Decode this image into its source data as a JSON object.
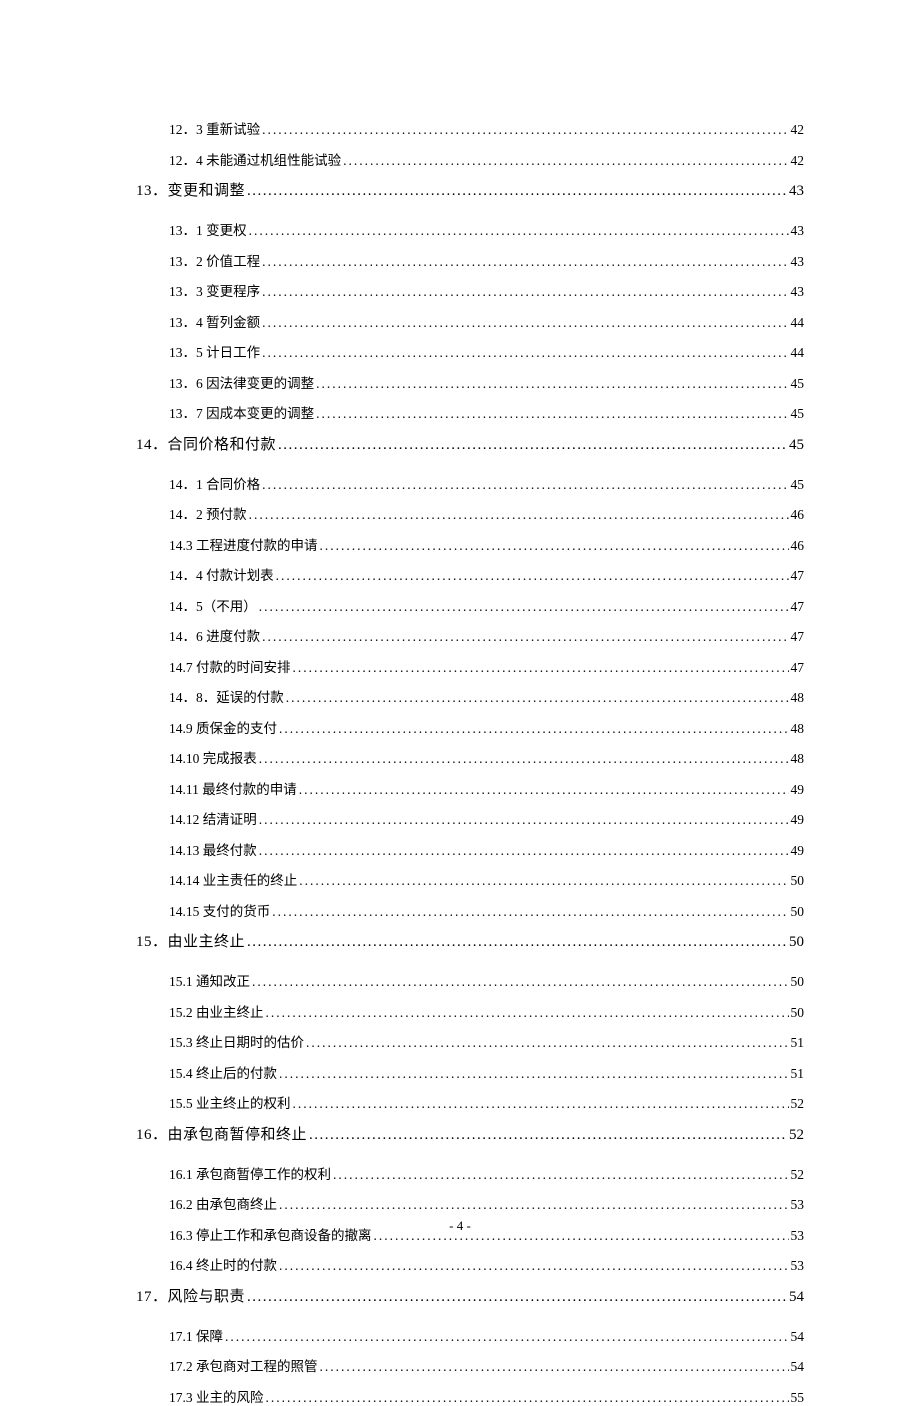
{
  "colors": {
    "background": "#ffffff",
    "text": "#000000"
  },
  "typography": {
    "sub_fontsize": 13.5,
    "main_fontsize": 15,
    "font_family": "SimSun"
  },
  "entries": [
    {
      "level": "sub",
      "label": "12．3 重新试验",
      "page": "42"
    },
    {
      "level": "sub",
      "label": "12．4 未能通过机组性能试验",
      "page": "42"
    },
    {
      "level": "main",
      "label": "13．变更和调整 ",
      "page": "43"
    },
    {
      "level": "sub",
      "label": "13．1 变更权",
      "page": "43"
    },
    {
      "level": "sub",
      "label": "13．2 价值工程",
      "page": "43"
    },
    {
      "level": "sub",
      "label": "13．3 变更程序",
      "page": "43"
    },
    {
      "level": "sub",
      "label": "13．4 暂列金额",
      "page": "44"
    },
    {
      "level": "sub",
      "label": "13．5 计日工作",
      "page": "44"
    },
    {
      "level": "sub",
      "label": "13．6 因法律变更的调整",
      "page": "45"
    },
    {
      "level": "sub",
      "label": "13．7 因成本变更的调整",
      "page": "45"
    },
    {
      "level": "main",
      "label": "14．合同价格和付款 ",
      "page": "45"
    },
    {
      "level": "sub",
      "label": "14．1 合同价格",
      "page": "45"
    },
    {
      "level": "sub",
      "label": "14．2 预付款",
      "page": "46"
    },
    {
      "level": "sub",
      "label": "14.3 工程进度付款的申请",
      "page": "46"
    },
    {
      "level": "sub",
      "label": "14．4 付款计划表",
      "page": "47"
    },
    {
      "level": "sub",
      "label": "14．5（不用）",
      "page": "47"
    },
    {
      "level": "sub",
      "label": "14．6 进度付款",
      "page": "47"
    },
    {
      "level": "sub",
      "label": "14.7 付款的时间安排",
      "page": "47"
    },
    {
      "level": "sub",
      "label": "14．8．延误的付款",
      "page": "48"
    },
    {
      "level": "sub",
      "label": "14.9 质保金的支付",
      "page": "48"
    },
    {
      "level": "sub",
      "label": "14.10 完成报表",
      "page": "48"
    },
    {
      "level": "sub",
      "label": "14.11 最终付款的申请",
      "page": "49"
    },
    {
      "level": "sub",
      "label": "14.12 结清证明",
      "page": "49"
    },
    {
      "level": "sub",
      "label": "14.13 最终付款",
      "page": "49"
    },
    {
      "level": "sub",
      "label": "14.14 业主责任的终止",
      "page": "50"
    },
    {
      "level": "sub",
      "label": "14.15 支付的货币",
      "page": "50"
    },
    {
      "level": "main",
      "label": "15．由业主终止 ",
      "page": "50"
    },
    {
      "level": "sub",
      "label": "15.1 通知改正",
      "page": "50"
    },
    {
      "level": "sub",
      "label": "15.2 由业主终止",
      "page": "50"
    },
    {
      "level": "sub",
      "label": "15.3 终止日期时的估价",
      "page": "51"
    },
    {
      "level": "sub",
      "label": "15.4 终止后的付款",
      "page": "51"
    },
    {
      "level": "sub",
      "label": "15.5 业主终止的权利",
      "page": "52"
    },
    {
      "level": "main",
      "label": "16．由承包商暂停和终止 ",
      "page": "52"
    },
    {
      "level": "sub",
      "label": "16.1 承包商暂停工作的权利",
      "page": "52"
    },
    {
      "level": "sub",
      "label": "16.2 由承包商终止",
      "page": "53"
    },
    {
      "level": "sub",
      "label": "16.3 停止工作和承包商设备的撤离",
      "page": "53"
    },
    {
      "level": "sub",
      "label": "16.4 终止时的付款",
      "page": "53"
    },
    {
      "level": "main",
      "label": "17．风险与职责 ",
      "page": "54"
    },
    {
      "level": "sub",
      "label": "17.1 保障",
      "page": "54"
    },
    {
      "level": "sub",
      "label": "17.2 承包商对工程的照管",
      "page": "54"
    },
    {
      "level": "sub",
      "label": "17.3 业主的风险",
      "page": "55"
    }
  ],
  "page_number": "- 4 -"
}
